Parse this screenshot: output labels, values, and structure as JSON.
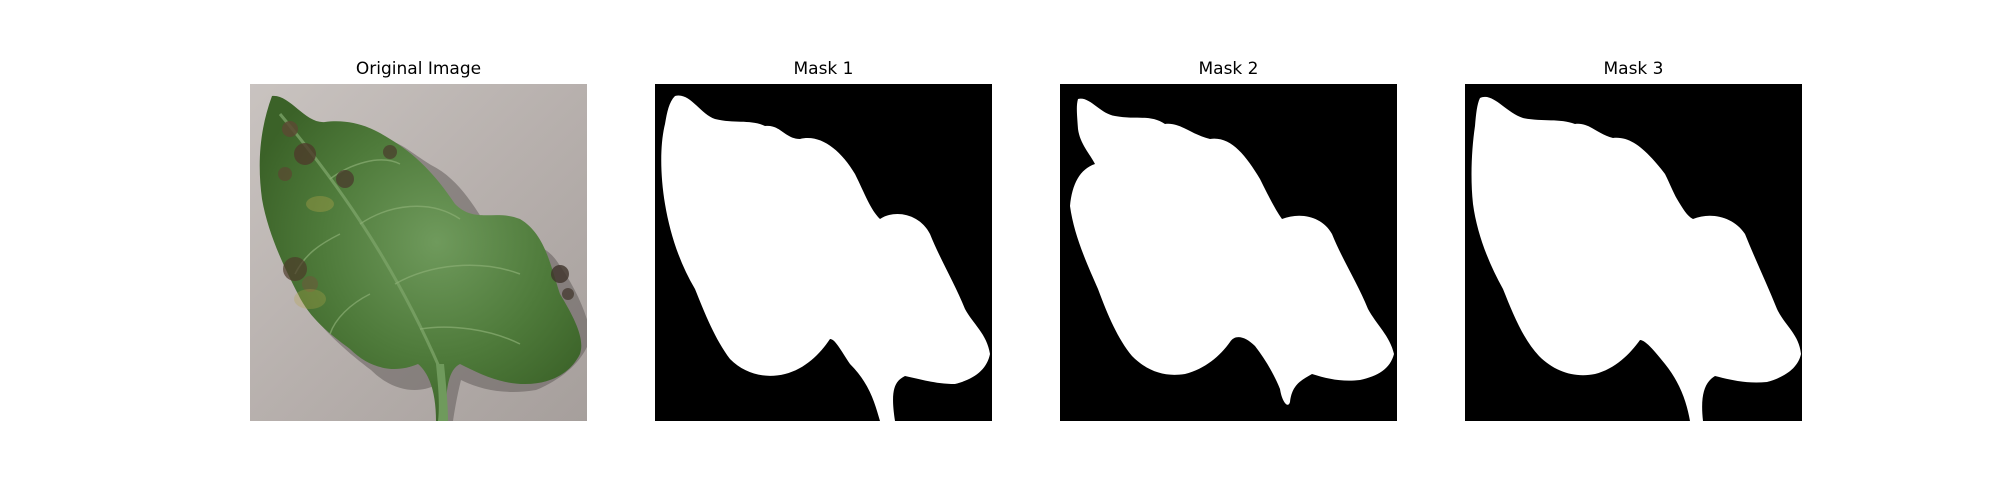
{
  "panels": [
    {
      "title": "Original Image"
    },
    {
      "title": "Mask 1"
    },
    {
      "title": "Mask 2"
    },
    {
      "title": "Mask 3"
    }
  ],
  "colors": {
    "background": "#ffffff",
    "mask_background": "#000000",
    "mask_foreground": "#ffffff",
    "leaf_green": "#4f7d3a",
    "backdrop_gray": "#b9b2ae"
  }
}
